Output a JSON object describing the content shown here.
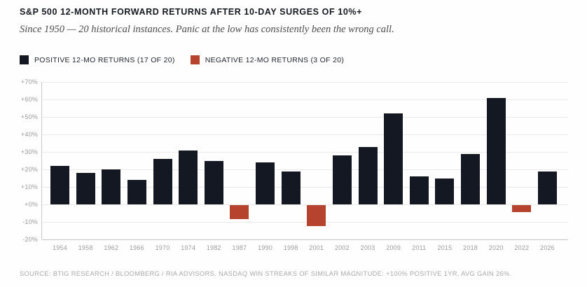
{
  "header": {
    "title": "S&P 500 12-MONTH FORWARD RETURNS AFTER 10-DAY SURGES OF 10%+",
    "subtitle": "Since 1950 — 20 historical instances. Panic at the low has consistently been the wrong call."
  },
  "legend": {
    "positive": {
      "label": "POSITIVE 12-MO RETURNS (17 OF 20)",
      "color": "#141822"
    },
    "negative": {
      "label": "NEGATIVE 12-MO RETURNS (3 OF 20)",
      "color": "#b6432e"
    }
  },
  "chart_data": {
    "type": "bar",
    "title": "S&P 500 12-MONTH FORWARD RETURNS AFTER 10-DAY SURGES OF 10%+",
    "categories": [
      "1954",
      "1958",
      "1962",
      "1966",
      "1970",
      "1974",
      "1982",
      "1987",
      "1990",
      "1998",
      "2001",
      "2002",
      "2003",
      "2009",
      "2011",
      "2015",
      "2018",
      "2020",
      "2022",
      "2026"
    ],
    "values": [
      22,
      18,
      20,
      14,
      26,
      31,
      25,
      -8,
      24,
      19,
      -12,
      28,
      33,
      52,
      16,
      15,
      29,
      61,
      -4,
      19
    ],
    "positive_color": "#141822",
    "negative_color": "#b6432e",
    "xlabel": "",
    "ylabel": "",
    "ylim": [
      -20,
      70
    ],
    "ytick_step": 10,
    "yticks": [
      "+70%",
      "+60%",
      "+50%",
      "+40%",
      "+30%",
      "+20%",
      "+10%",
      "+0%",
      "-10%",
      "-20%"
    ],
    "grid": true,
    "legend_position": "top-left"
  },
  "footer": {
    "source": "SOURCE: BTIG RESEARCH / BLOOMBERG / RIA ADVISORS. NASDAQ WIN STREAKS OF SIMILAR MAGNITUDE: +100% POSITIVE 1YR, AVG GAIN 26%."
  }
}
